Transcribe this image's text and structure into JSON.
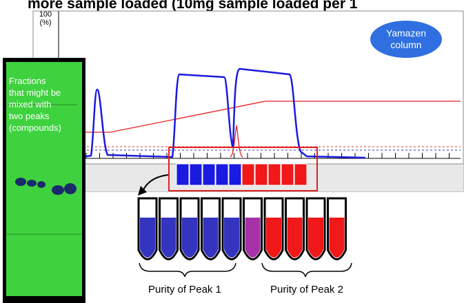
{
  "header": {
    "title": "more sample loaded (10mg sample loaded per 1"
  },
  "axis": {
    "max": "100",
    "unit": "(%)"
  },
  "badge": {
    "lines": [
      "Yamazen",
      "column"
    ]
  },
  "note": {
    "lines": [
      "Fractions",
      "that might be",
      "mixed with",
      "two peaks",
      "(compounds)"
    ]
  },
  "labels": {
    "peak1": "Purity of Peak 1",
    "peak2": "Purity of Peak 2"
  }
}
